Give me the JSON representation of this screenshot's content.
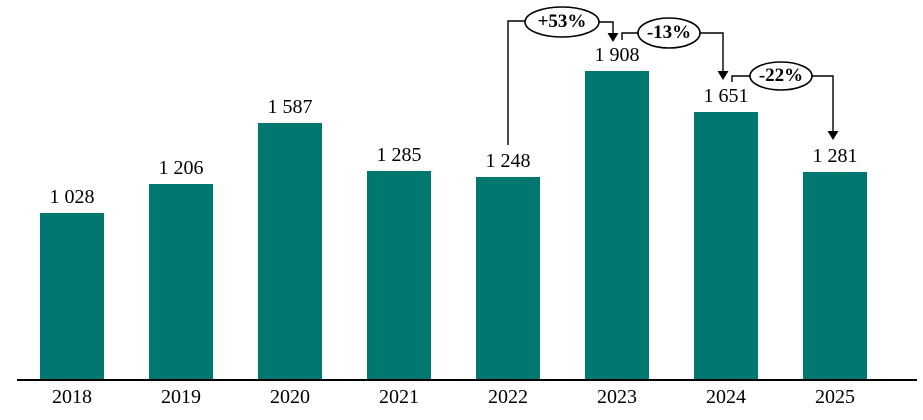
{
  "chart_data": {
    "type": "bar",
    "title": "",
    "categories": [
      "2018",
      "2019",
      "2020",
      "2021",
      "2022",
      "2023",
      "2024",
      "2025"
    ],
    "values": [
      1028,
      1206,
      1587,
      1285,
      1248,
      1908,
      1651,
      1281
    ],
    "value_labels": [
      "1 028",
      "1 206",
      "1 587",
      "1 285",
      "1 248",
      "1 908",
      "1 651",
      "1 281"
    ],
    "ylim": [
      0,
      2300
    ],
    "grid": false,
    "legend": false,
    "bar_color": "#00776F",
    "axis_color": "#000000",
    "text_color": "#000000",
    "annotation_bubble_fill": "#ffffff",
    "annotation_bubble_stroke": "#000000",
    "annotations": [
      {
        "label": "+53%",
        "from": "2022",
        "to": "2023"
      },
      {
        "label": "-13%",
        "from": "2023",
        "to": "2024"
      },
      {
        "label": "-22%",
        "from": "2024",
        "to": "2025"
      }
    ]
  }
}
